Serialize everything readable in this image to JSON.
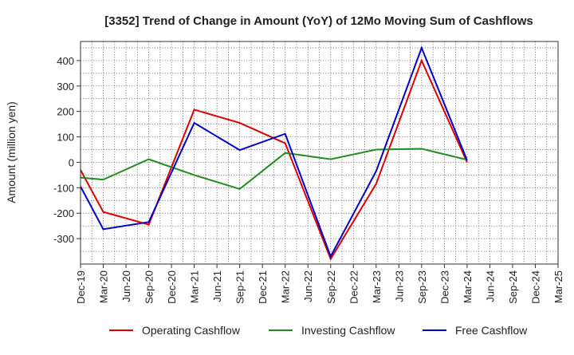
{
  "chart_data": {
    "type": "line",
    "title": "[3352]  Trend of Change in Amount (YoY) of 12Mo Moving Sum of Cashflows",
    "xlabel": "",
    "ylabel": "Amount (million yen)",
    "ylim": [
      -400,
      475
    ],
    "yticks": [
      -300,
      -200,
      -100,
      0,
      100,
      200,
      300,
      400
    ],
    "grid": true,
    "legend_position": "bottom-center",
    "categories": [
      "Dec-19",
      "Mar-20",
      "Jun-20",
      "Sep-20",
      "Dec-20",
      "Mar-21",
      "Jun-21",
      "Sep-21",
      "Dec-21",
      "Mar-22",
      "Jun-22",
      "Sep-22",
      "Dec-22",
      "Mar-23",
      "Jun-23",
      "Sep-23",
      "Dec-23",
      "Mar-24",
      "Jun-24",
      "Sep-24",
      "Dec-24",
      "Mar-25"
    ],
    "series": [
      {
        "name": "Operating Cashflow",
        "color": "#dd0000",
        "points": [
          {
            "x": "Dec-19",
            "y": -30
          },
          {
            "x": "Mar-20",
            "y": -195
          },
          {
            "x": "Sep-20",
            "y": -245
          },
          {
            "x": "Mar-21",
            "y": 207
          },
          {
            "x": "Sep-21",
            "y": 155
          },
          {
            "x": "Mar-22",
            "y": 75
          },
          {
            "x": "Sep-22",
            "y": -380
          },
          {
            "x": "Mar-23",
            "y": -85
          },
          {
            "x": "Sep-23",
            "y": 400
          },
          {
            "x": "Mar-24",
            "y": 0
          }
        ]
      },
      {
        "name": "Investing Cashflow",
        "color": "#228b22",
        "points": [
          {
            "x": "Dec-19",
            "y": -60
          },
          {
            "x": "Mar-20",
            "y": -68
          },
          {
            "x": "Sep-20",
            "y": 12
          },
          {
            "x": "Mar-21",
            "y": -50
          },
          {
            "x": "Sep-21",
            "y": -105
          },
          {
            "x": "Mar-22",
            "y": 37
          },
          {
            "x": "Sep-22",
            "y": 12
          },
          {
            "x": "Mar-23",
            "y": 50
          },
          {
            "x": "Sep-23",
            "y": 53
          },
          {
            "x": "Mar-24",
            "y": 10
          }
        ]
      },
      {
        "name": "Free Cashflow",
        "color": "#0000cc",
        "points": [
          {
            "x": "Dec-19",
            "y": -95
          },
          {
            "x": "Mar-20",
            "y": -263
          },
          {
            "x": "Sep-20",
            "y": -235
          },
          {
            "x": "Mar-21",
            "y": 155
          },
          {
            "x": "Sep-21",
            "y": 48
          },
          {
            "x": "Mar-22",
            "y": 112
          },
          {
            "x": "Sep-22",
            "y": -370
          },
          {
            "x": "Mar-23",
            "y": -35
          },
          {
            "x": "Sep-23",
            "y": 450
          },
          {
            "x": "Mar-24",
            "y": 8
          }
        ]
      }
    ]
  }
}
